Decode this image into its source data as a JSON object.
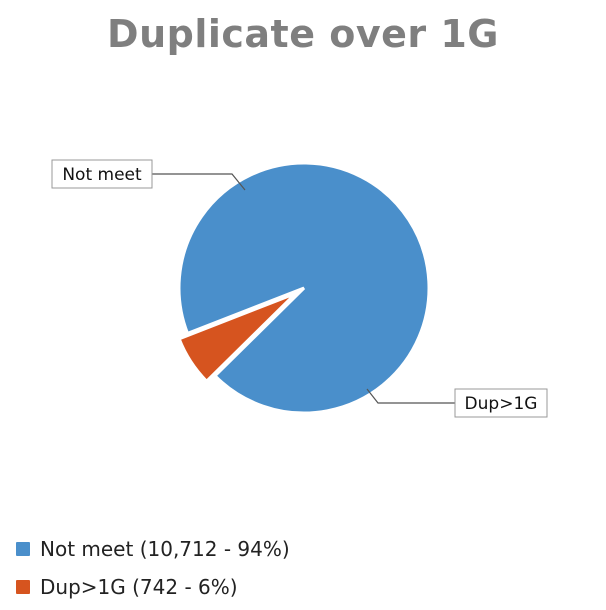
{
  "chart_data": {
    "type": "pie",
    "title": "Duplicate over 1G",
    "slices": [
      {
        "label": "Not meet",
        "value": 10712,
        "percent": 94,
        "color": "#4a8fcb",
        "legend": "Not meet (10,712 - 94%)"
      },
      {
        "label": "Dup>1G",
        "value": 742,
        "percent": 6,
        "color": "#d6541f",
        "legend": "Dup>1G (742 - 6%)"
      }
    ],
    "legend_position": "bottom-left"
  }
}
